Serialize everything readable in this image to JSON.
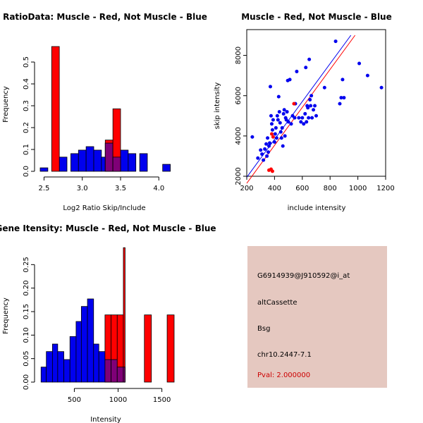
{
  "colors": {
    "red": "#ff0000",
    "blue": "#0000ee",
    "overlap": "#7f0077",
    "panel": "#e5c8c0",
    "pval": "#cc0000"
  },
  "info_panel": {
    "probe": "G6914939@J910592@i_at",
    "event_type": "altCassette",
    "gene": "Bsg",
    "location": "chr10.2447-7.1",
    "pval": "Pval: 2.000000"
  },
  "chart_data": [
    {
      "type": "bar",
      "id": "ratio",
      "title": "RatioData: Muscle - Red, Not Muscle - Blue",
      "xlabel": "Log2 Ratio Skip/Include",
      "ylabel": "Frequency",
      "xlim": [
        2.45,
        4.2
      ],
      "ylim": [
        0,
        0.6
      ],
      "xticks": [
        2.5,
        3.0,
        3.5,
        4.0
      ],
      "xtick_labels": [
        "2.5",
        "3.0",
        "3.5",
        "4.0"
      ],
      "yticks": [
        0.0,
        0.1,
        0.2,
        0.3,
        0.4,
        0.5
      ],
      "ytick_labels": [
        "0.0",
        "0.1",
        "0.2",
        "0.3",
        "0.4",
        "0.5"
      ],
      "series": [
        {
          "name": "Not Muscle",
          "color": "blue",
          "bins": [
            [
              2.45,
              2.55,
              0.016
            ],
            [
              2.7,
              2.8,
              0.065
            ],
            [
              2.85,
              2.95,
              0.081
            ],
            [
              2.95,
              3.05,
              0.097
            ],
            [
              3.05,
              3.15,
              0.113
            ],
            [
              3.15,
              3.25,
              0.097
            ],
            [
              3.25,
              3.3,
              0.065
            ],
            [
              3.3,
              3.4,
              0.129
            ],
            [
              3.4,
              3.5,
              0.065
            ],
            [
              3.5,
              3.6,
              0.097
            ],
            [
              3.6,
              3.7,
              0.081
            ],
            [
              3.75,
              3.85,
              0.081
            ],
            [
              4.05,
              4.15,
              0.032
            ]
          ]
        },
        {
          "name": "Muscle",
          "color": "red",
          "bins": [
            [
              2.6,
              2.7,
              0.571
            ],
            [
              3.3,
              3.4,
              0.143
            ],
            [
              3.4,
              3.5,
              0.286
            ]
          ]
        }
      ]
    },
    {
      "type": "scatter",
      "id": "scatter",
      "title": "Muscle - Red, Not Muscle - Blue",
      "xlabel": "include intensity",
      "ylabel": "skip intensity",
      "xlim": [
        200,
        1200
      ],
      "ylim": [
        2000,
        9000
      ],
      "xticks": [
        200,
        400,
        600,
        800,
        1000,
        1200
      ],
      "xtick_labels": [
        "200",
        "400",
        "600",
        "800",
        "1000",
        "1200"
      ],
      "yticks": [
        2000,
        4000,
        6000,
        8000
      ],
      "ytick_labels": [
        "2000",
        "4000",
        "6000",
        "8000"
      ],
      "blue_points": [
        [
          240,
          3950
        ],
        [
          280,
          2900
        ],
        [
          300,
          3300
        ],
        [
          310,
          3100
        ],
        [
          320,
          2800
        ],
        [
          330,
          3350
        ],
        [
          340,
          3600
        ],
        [
          345,
          3000
        ],
        [
          350,
          3900
        ],
        [
          355,
          3200
        ],
        [
          360,
          3500
        ],
        [
          365,
          3650
        ],
        [
          370,
          6450
        ],
        [
          375,
          5000
        ],
        [
          380,
          4600
        ],
        [
          385,
          4300
        ],
        [
          390,
          4800
        ],
        [
          400,
          3700
        ],
        [
          405,
          4100
        ],
        [
          410,
          4400
        ],
        [
          415,
          3900
        ],
        [
          420,
          5000
        ],
        [
          425,
          4800
        ],
        [
          430,
          5950
        ],
        [
          435,
          5200
        ],
        [
          440,
          4650
        ],
        [
          445,
          4200
        ],
        [
          450,
          3900
        ],
        [
          455,
          4400
        ],
        [
          460,
          3500
        ],
        [
          465,
          5100
        ],
        [
          470,
          5300
        ],
        [
          475,
          4000
        ],
        [
          480,
          4900
        ],
        [
          485,
          4800
        ],
        [
          490,
          5200
        ],
        [
          495,
          6750
        ],
        [
          500,
          4700
        ],
        [
          510,
          6800
        ],
        [
          520,
          4600
        ],
        [
          530,
          5000
        ],
        [
          545,
          4900
        ],
        [
          550,
          5600
        ],
        [
          560,
          7200
        ],
        [
          575,
          4900
        ],
        [
          590,
          4700
        ],
        [
          600,
          4900
        ],
        [
          610,
          4600
        ],
        [
          620,
          5100
        ],
        [
          625,
          7400
        ],
        [
          630,
          4700
        ],
        [
          635,
          5500
        ],
        [
          640,
          5400
        ],
        [
          645,
          4900
        ],
        [
          650,
          7800
        ],
        [
          655,
          5800
        ],
        [
          660,
          5500
        ],
        [
          665,
          6000
        ],
        [
          670,
          4900
        ],
        [
          680,
          5300
        ],
        [
          690,
          5500
        ],
        [
          700,
          5000
        ],
        [
          760,
          6400
        ],
        [
          840,
          8700
        ],
        [
          870,
          5600
        ],
        [
          880,
          5900
        ],
        [
          890,
          6800
        ],
        [
          900,
          5900
        ],
        [
          1010,
          7600
        ],
        [
          1070,
          7000
        ],
        [
          1170,
          6400
        ]
      ],
      "red_points": [
        [
          360,
          2300
        ],
        [
          375,
          2350
        ],
        [
          385,
          2250
        ],
        [
          380,
          4100
        ],
        [
          390,
          3950
        ],
        [
          540,
          5600
        ]
      ],
      "fit_lines": [
        {
          "color": "blue",
          "x": [
            200,
            950
          ],
          "y": [
            1950,
            9000
          ]
        },
        {
          "color": "red",
          "x": [
            200,
            980
          ],
          "y": [
            1650,
            9000
          ]
        }
      ]
    },
    {
      "type": "bar",
      "id": "intensity",
      "title": "Gene Itensity: Muscle - Red, Not Muscle - Blue",
      "xlabel": "Intensity",
      "ylabel": "Frequency",
      "xlim": [
        110,
        1640
      ],
      "ylim": [
        0,
        0.3
      ],
      "xticks": [
        500,
        1000,
        1500
      ],
      "xtick_labels": [
        "500",
        "1000",
        "1500"
      ],
      "yticks": [
        0.0,
        0.05,
        0.1,
        0.15,
        0.2,
        0.25
      ],
      "ytick_labels": [
        "0.00",
        "0.05",
        "0.10",
        "0.15",
        "0.20",
        "0.25"
      ],
      "series": [
        {
          "name": "Not Muscle",
          "color": "blue",
          "bins": [
            [
              120,
              180,
              0.032
            ],
            [
              180,
              250,
              0.065
            ],
            [
              250,
              310,
              0.081
            ],
            [
              310,
              380,
              0.065
            ],
            [
              380,
              450,
              0.048
            ],
            [
              450,
              520,
              0.097
            ],
            [
              520,
              580,
              0.129
            ],
            [
              580,
              650,
              0.161
            ],
            [
              650,
              720,
              0.177
            ],
            [
              720,
              780,
              0.081
            ],
            [
              780,
              850,
              0.065
            ],
            [
              850,
              920,
              0.048
            ],
            [
              920,
              990,
              0.048
            ],
            [
              990,
              1060,
              0.032
            ],
            [
              1060,
              1080,
              0.032
            ]
          ]
        },
        {
          "name": "Muscle",
          "color": "red",
          "bins": [
            [
              780,
              850,
              0.0
            ],
            [
              850,
              920,
              0.143
            ],
            [
              920,
              990,
              0.143
            ],
            [
              990,
              1060,
              0.143
            ],
            [
              1060,
              1080,
              0.286
            ],
            [
              1300,
              1380,
              0.143
            ],
            [
              1560,
              1640,
              0.143
            ]
          ]
        }
      ]
    }
  ]
}
